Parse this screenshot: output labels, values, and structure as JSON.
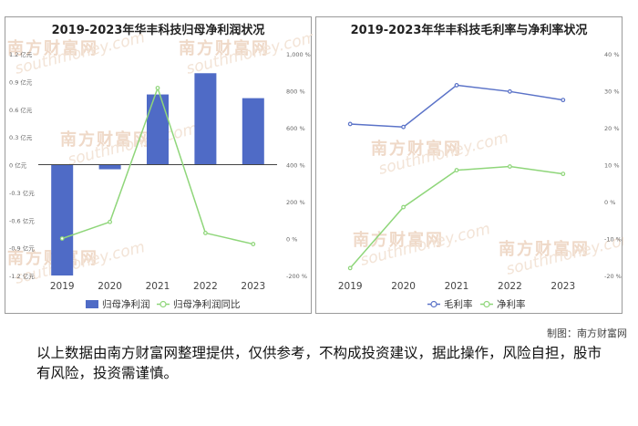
{
  "chart_data": [
    {
      "type": "bar",
      "title": "2019-2023年华丰科技归母净利润状况",
      "categories": [
        "2019",
        "2020",
        "2021",
        "2022",
        "2023"
      ],
      "series": [
        {
          "name": "归母净利润",
          "kind": "bar",
          "axis": "left",
          "color": "#4f6bc6",
          "values": [
            -1.2,
            -0.05,
            0.76,
            0.99,
            0.72
          ]
        },
        {
          "name": "归母净利润同比",
          "kind": "line",
          "axis": "right",
          "color": "#8fd67a",
          "values": [
            0,
            90,
            815,
            30,
            -30
          ]
        }
      ],
      "left_axis": {
        "min": -1.2,
        "max": 1.2,
        "ticks": [
          "1.2 亿元",
          "0.9 亿元",
          "0.6 亿元",
          "0.3 亿元",
          "0 亿元",
          "-0.3 亿元",
          "-0.6 亿元",
          "-0.9 亿元",
          "-1.2 亿元"
        ]
      },
      "right_axis": {
        "min": -200,
        "max": 1000,
        "ticks": [
          "1,000 %",
          "800 %",
          "600 %",
          "400 %",
          "200 %",
          "0 %",
          "-200 %"
        ]
      },
      "legend": "bottom",
      "grid": false
    },
    {
      "type": "line",
      "title": "2019-2023年华丰科技毛利率与净利率状况",
      "categories": [
        "2019",
        "2020",
        "2021",
        "2022",
        "2023"
      ],
      "series": [
        {
          "name": "毛利率",
          "color": "#5b73c8",
          "values": [
            21,
            20.2,
            31.5,
            29.8,
            27.5
          ]
        },
        {
          "name": "净利率",
          "color": "#8fd67a",
          "values": [
            -18,
            -1.5,
            8.5,
            9.5,
            7.5
          ]
        }
      ],
      "right_axis": {
        "min": -20,
        "max": 40,
        "ticks": [
          "40 %",
          "30 %",
          "20 %",
          "10 %",
          "0 %",
          "-10 %",
          "-20 %"
        ]
      },
      "legend": "bottom",
      "grid": false
    }
  ],
  "watermark": {
    "brand": "南方财富网",
    "domain": "southmoney.com"
  },
  "footer": {
    "credit": "制图：南方财富网",
    "disclaimer": "以上数据由南方财富网整理提供，仅供参考，不构成投资建议，据此操作，风险自担，股市有风险，投资需谨慎。"
  }
}
